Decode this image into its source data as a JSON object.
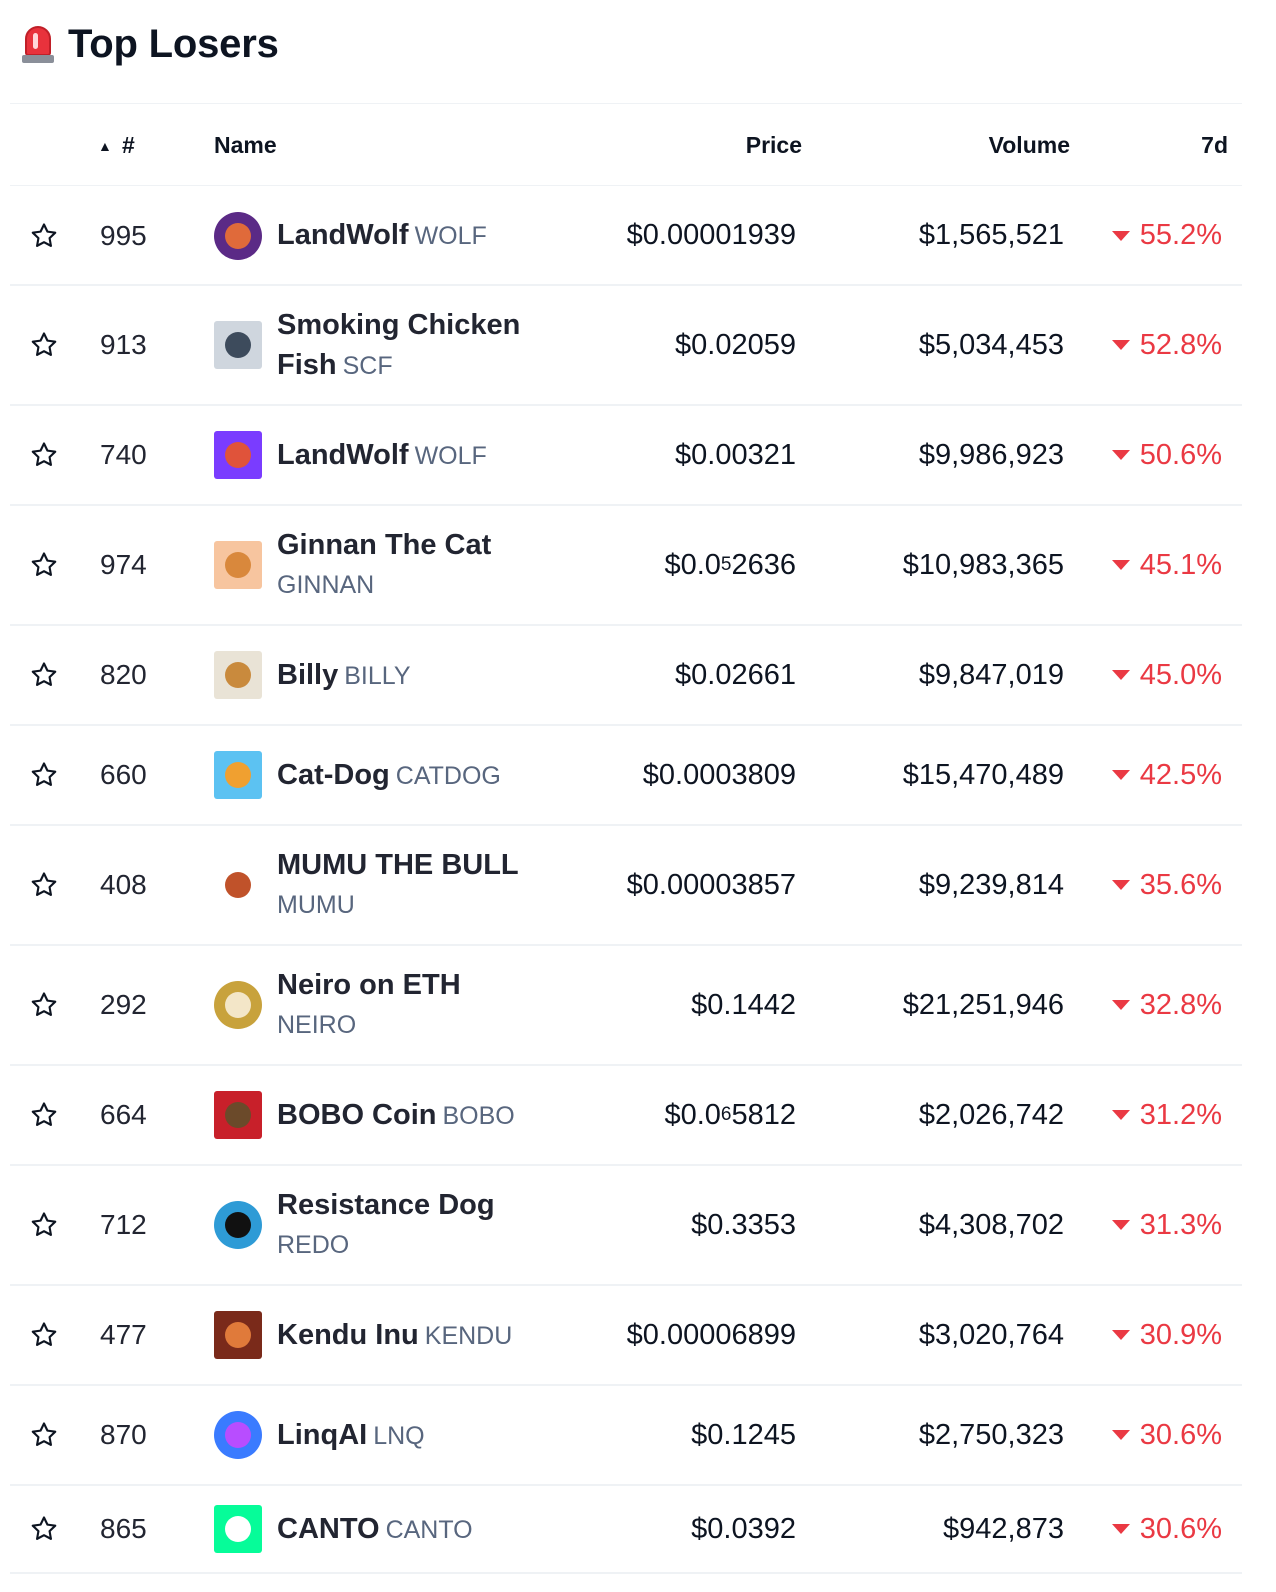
{
  "header": {
    "title": "Top Losers",
    "icon": "siren-icon"
  },
  "columns": {
    "sort_arrow": "▲",
    "rank": "#",
    "name": "Name",
    "price": "Price",
    "volume": "Volume",
    "change": "7d"
  },
  "colors": {
    "negative": "#ea3943",
    "divider": "#eff2f5",
    "text": "#0d1421",
    "symbol": "#58667e"
  },
  "rows": [
    {
      "rank": "995",
      "name": "LandWolf",
      "symbol": "WOLF",
      "price_pre": "$0.00001939",
      "price_sub": "",
      "price_post": "",
      "volume": "$1,565,521",
      "change": "55.2%",
      "logo": "landwolf-logo",
      "logo_bg": "#5b2a86",
      "logo_fg": "#e06a3a",
      "shape": "circle"
    },
    {
      "rank": "913",
      "name": "Smoking Chicken Fish",
      "symbol": "SCF",
      "price_pre": "$0.02059",
      "price_sub": "",
      "price_post": "",
      "volume": "$5,034,453",
      "change": "52.8%",
      "logo": "scf-logo",
      "logo_bg": "#cfd6de",
      "logo_fg": "#3d4b5c",
      "shape": "square"
    },
    {
      "rank": "740",
      "name": "LandWolf",
      "symbol": "WOLF",
      "price_pre": "$0.00321",
      "price_sub": "",
      "price_post": "",
      "volume": "$9,986,923",
      "change": "50.6%",
      "logo": "landwolf-logo",
      "logo_bg": "#7a3cff",
      "logo_fg": "#e0533a",
      "shape": "square"
    },
    {
      "rank": "974",
      "name": "Ginnan The Cat",
      "symbol": "GINNAN",
      "price_pre": "$0.0",
      "price_sub": "5",
      "price_post": "2636",
      "volume": "$10,983,365",
      "change": "45.1%",
      "logo": "ginnan-logo",
      "logo_bg": "#f7c59f",
      "logo_fg": "#d9883c",
      "shape": "square"
    },
    {
      "rank": "820",
      "name": "Billy",
      "symbol": "BILLY",
      "price_pre": "$0.02661",
      "price_sub": "",
      "price_post": "",
      "volume": "$9,847,019",
      "change": "45.0%",
      "logo": "billy-logo",
      "logo_bg": "#e9e3d6",
      "logo_fg": "#c98a3d",
      "shape": "square"
    },
    {
      "rank": "660",
      "name": "Cat-Dog",
      "symbol": "CATDOG",
      "price_pre": "$0.0003809",
      "price_sub": "",
      "price_post": "",
      "volume": "$15,470,489",
      "change": "42.5%",
      "logo": "catdog-logo",
      "logo_bg": "#5cc2f2",
      "logo_fg": "#f0a030",
      "shape": "square"
    },
    {
      "rank": "408",
      "name": "MUMU THE BULL",
      "symbol": "MUMU",
      "price_pre": "$0.00003857",
      "price_sub": "",
      "price_post": "",
      "volume": "$9,239,814",
      "change": "35.6%",
      "logo": "mumu-logo",
      "logo_bg": "#ffffff",
      "logo_fg": "#c0522a",
      "shape": "circle"
    },
    {
      "rank": "292",
      "name": "Neiro on ETH",
      "symbol": "NEIRO",
      "price_pre": "$0.1442",
      "price_sub": "",
      "price_post": "",
      "volume": "$21,251,946",
      "change": "32.8%",
      "logo": "neiro-logo",
      "logo_bg": "#c8a23c",
      "logo_fg": "#f3e6c8",
      "shape": "circle"
    },
    {
      "rank": "664",
      "name": "BOBO Coin",
      "symbol": "BOBO",
      "price_pre": "$0.0",
      "price_sub": "6",
      "price_post": "5812",
      "volume": "$2,026,742",
      "change": "31.2%",
      "logo": "bobo-logo",
      "logo_bg": "#c8202a",
      "logo_fg": "#6b4a2a",
      "shape": "square"
    },
    {
      "rank": "712",
      "name": "Resistance Dog",
      "symbol": "REDO",
      "price_pre": "$0.3353",
      "price_sub": "",
      "price_post": "",
      "volume": "$4,308,702",
      "change": "31.3%",
      "logo": "redo-logo",
      "logo_bg": "#2e9bd6",
      "logo_fg": "#111111",
      "shape": "circle"
    },
    {
      "rank": "477",
      "name": "Kendu Inu",
      "symbol": "KENDU",
      "price_pre": "$0.00006899",
      "price_sub": "",
      "price_post": "",
      "volume": "$3,020,764",
      "change": "30.9%",
      "logo": "kendu-logo",
      "logo_bg": "#7a2a1a",
      "logo_fg": "#e07a3a",
      "shape": "square"
    },
    {
      "rank": "870",
      "name": "LinqAI",
      "symbol": "LNQ",
      "price_pre": "$0.1245",
      "price_sub": "",
      "price_post": "",
      "volume": "$2,750,323",
      "change": "30.6%",
      "logo": "linqai-logo",
      "logo_bg": "#3a7bff",
      "logo_fg": "#b84dff",
      "shape": "circle"
    },
    {
      "rank": "865",
      "name": "CANTO",
      "symbol": "CANTO",
      "price_pre": "$0.0392",
      "price_sub": "",
      "price_post": "",
      "volume": "$942,873",
      "change": "30.6%",
      "logo": "canto-logo",
      "logo_bg": "#06fc99",
      "logo_fg": "#ffffff",
      "shape": "square"
    }
  ]
}
